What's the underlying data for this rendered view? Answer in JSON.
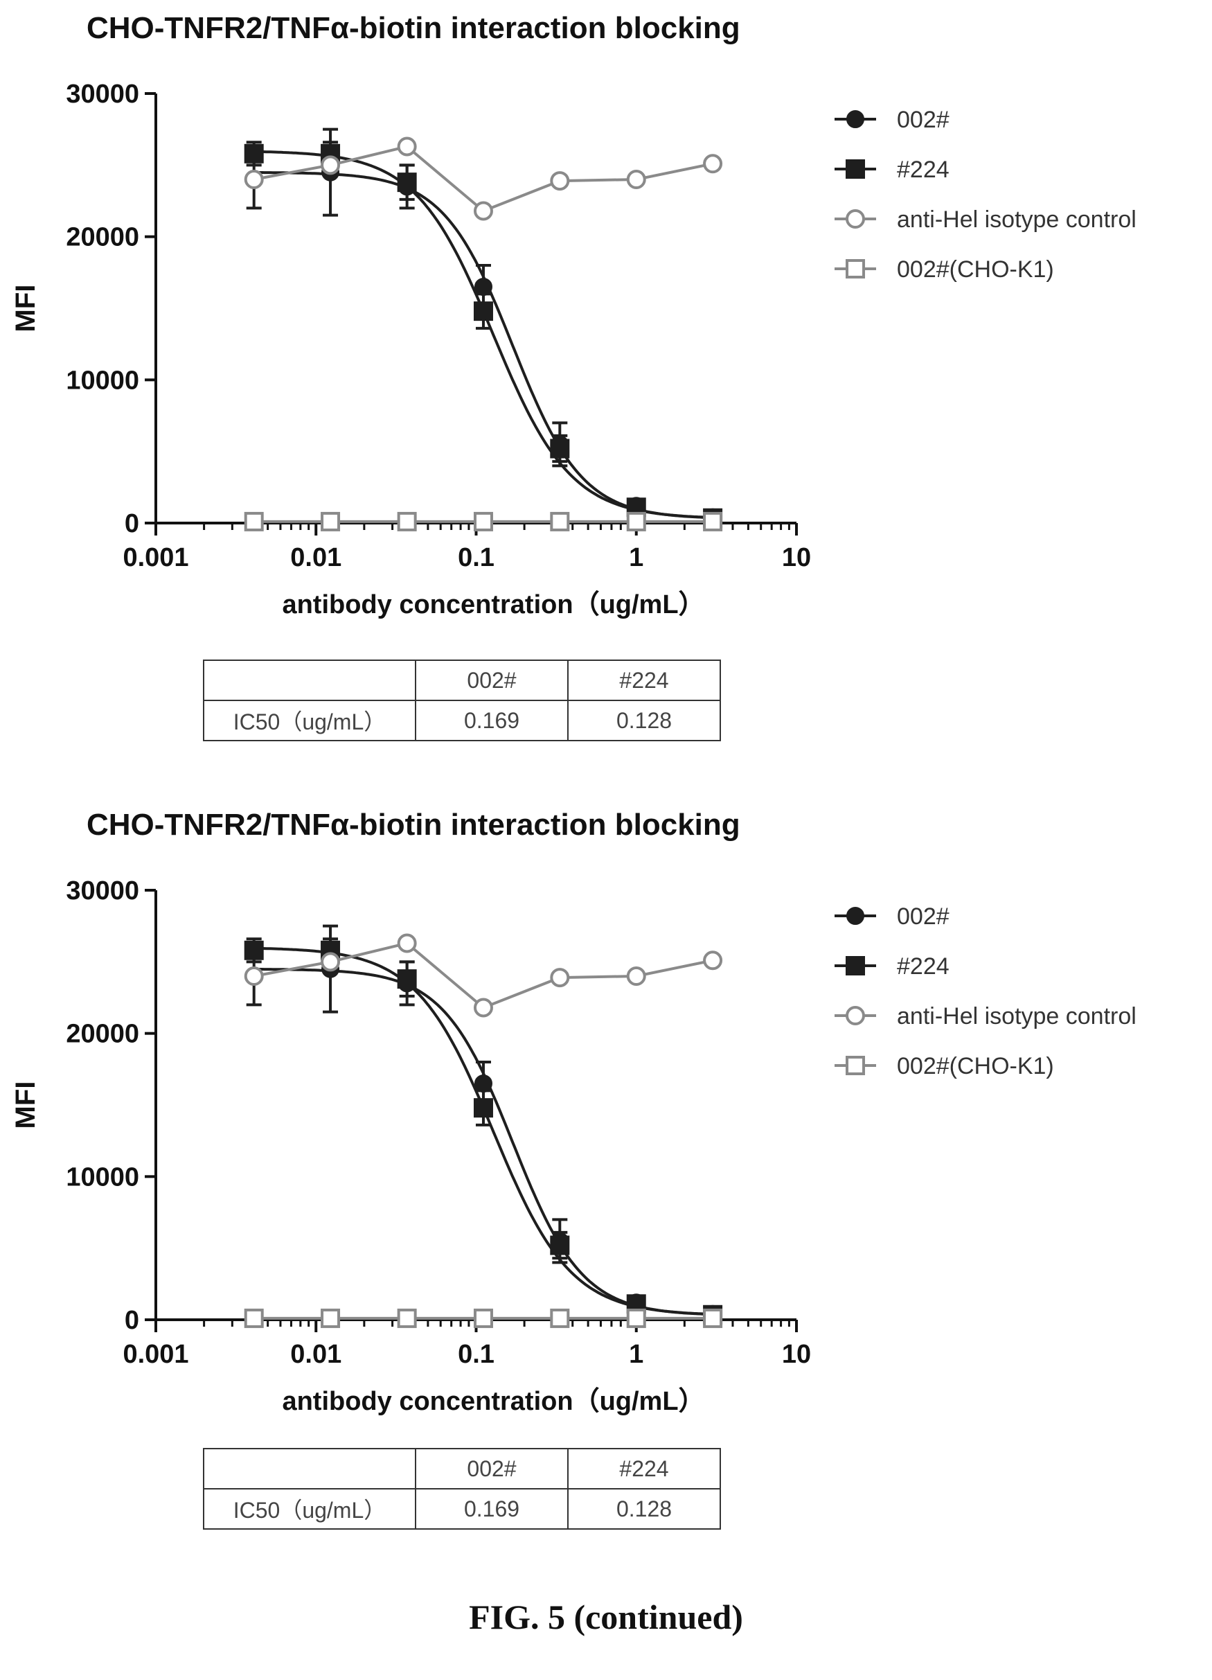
{
  "figure_caption": "FIG. 5 (continued)",
  "colors": {
    "dark_series": "#1e1e1e",
    "light_series": "#8a8a8a",
    "axis": "#111111"
  },
  "chart_data": [
    {
      "type": "scatter",
      "title": "CHO-TNFR2/TNFα-biotin interaction blocking",
      "xlabel": "antibody concentration（ug/mL）",
      "ylabel": "MFI",
      "x_scale": "log",
      "xlim": [
        0.001,
        10
      ],
      "ylim": [
        0,
        30000
      ],
      "x_ticks": [
        0.001,
        0.01,
        0.1,
        1,
        10
      ],
      "x_tick_labels": [
        "0.001",
        "0.01",
        "0.1",
        "1",
        "10"
      ],
      "y_ticks": [
        0,
        10000,
        20000,
        30000
      ],
      "y_tick_labels": [
        "0",
        "10000",
        "20000",
        "30000"
      ],
      "legend_position": "top-right",
      "series": [
        {
          "name": "002#",
          "marker": "filled-circle",
          "fit": "4pl",
          "error_bars": true,
          "x": [
            0.0041,
            0.0123,
            0.037,
            0.111,
            0.333,
            1,
            3
          ],
          "y": [
            24000,
            24500,
            23500,
            16500,
            5500,
            1200,
            400
          ],
          "err": [
            2000,
            3000,
            1500,
            1500,
            1500,
            300,
            300
          ],
          "fit_params": {
            "top": 24500,
            "bottom": 300,
            "ic50": 0.169,
            "hill": 2.0
          }
        },
        {
          "name": "#224",
          "marker": "filled-square",
          "fit": "4pl",
          "error_bars": true,
          "x": [
            0.0041,
            0.0123,
            0.037,
            0.111,
            0.333,
            1,
            3
          ],
          "y": [
            25800,
            25800,
            23800,
            14800,
            5200,
            1100,
            350
          ],
          "err": [
            800,
            800,
            1200,
            1200,
            900,
            200,
            200
          ],
          "fit_params": {
            "top": 26000,
            "bottom": 300,
            "ic50": 0.128,
            "hill": 1.8
          }
        },
        {
          "name": "anti-Hel isotype control",
          "marker": "open-circle",
          "fit": "connect",
          "error_bars": false,
          "x": [
            0.0041,
            0.0123,
            0.037,
            0.111,
            0.333,
            1,
            3
          ],
          "y": [
            24000,
            25000,
            26300,
            21800,
            23900,
            24000,
            25100
          ]
        },
        {
          "name": "002#(CHO-K1)",
          "marker": "open-square",
          "fit": "connect",
          "error_bars": false,
          "x": [
            0.0041,
            0.0123,
            0.037,
            0.111,
            0.333,
            1,
            3
          ],
          "y": [
            100,
            100,
            100,
            100,
            100,
            100,
            100
          ]
        }
      ],
      "table": {
        "header": [
          "",
          "002#",
          "#224"
        ],
        "rows": [
          [
            "IC50（ug/mL）",
            "0.169",
            "0.128"
          ]
        ]
      }
    },
    {
      "type": "scatter",
      "title": "CHO-TNFR2/TNFα-biotin interaction blocking",
      "xlabel": "antibody concentration（ug/mL）",
      "ylabel": "MFI",
      "x_scale": "log",
      "xlim": [
        0.001,
        10
      ],
      "ylim": [
        0,
        30000
      ],
      "x_ticks": [
        0.001,
        0.01,
        0.1,
        1,
        10
      ],
      "x_tick_labels": [
        "0.001",
        "0.01",
        "0.1",
        "1",
        "10"
      ],
      "y_ticks": [
        0,
        10000,
        20000,
        30000
      ],
      "y_tick_labels": [
        "0",
        "10000",
        "20000",
        "30000"
      ],
      "legend_position": "top-right",
      "series": [
        {
          "name": "002#",
          "marker": "filled-circle",
          "fit": "4pl",
          "error_bars": true,
          "x": [
            0.0041,
            0.0123,
            0.037,
            0.111,
            0.333,
            1,
            3
          ],
          "y": [
            24000,
            24500,
            23500,
            16500,
            5500,
            1200,
            400
          ],
          "err": [
            2000,
            3000,
            1500,
            1500,
            1500,
            300,
            300
          ],
          "fit_params": {
            "top": 24500,
            "bottom": 300,
            "ic50": 0.169,
            "hill": 2.0
          }
        },
        {
          "name": "#224",
          "marker": "filled-square",
          "fit": "4pl",
          "error_bars": true,
          "x": [
            0.0041,
            0.0123,
            0.037,
            0.111,
            0.333,
            1,
            3
          ],
          "y": [
            25800,
            25800,
            23800,
            14800,
            5200,
            1100,
            350
          ],
          "err": [
            800,
            800,
            1200,
            1200,
            900,
            200,
            200
          ],
          "fit_params": {
            "top": 26000,
            "bottom": 300,
            "ic50": 0.128,
            "hill": 1.8
          }
        },
        {
          "name": "anti-Hel isotype control",
          "marker": "open-circle",
          "fit": "connect",
          "error_bars": false,
          "x": [
            0.0041,
            0.0123,
            0.037,
            0.111,
            0.333,
            1,
            3
          ],
          "y": [
            24000,
            25000,
            26300,
            21800,
            23900,
            24000,
            25100
          ]
        },
        {
          "name": "002#(CHO-K1)",
          "marker": "open-square",
          "fit": "connect",
          "error_bars": false,
          "x": [
            0.0041,
            0.0123,
            0.037,
            0.111,
            0.333,
            1,
            3
          ],
          "y": [
            100,
            100,
            100,
            100,
            100,
            100,
            100
          ]
        }
      ],
      "table": {
        "header": [
          "",
          "002#",
          "#224"
        ],
        "rows": [
          [
            "IC50（ug/mL）",
            "0.169",
            "0.128"
          ]
        ]
      }
    }
  ]
}
